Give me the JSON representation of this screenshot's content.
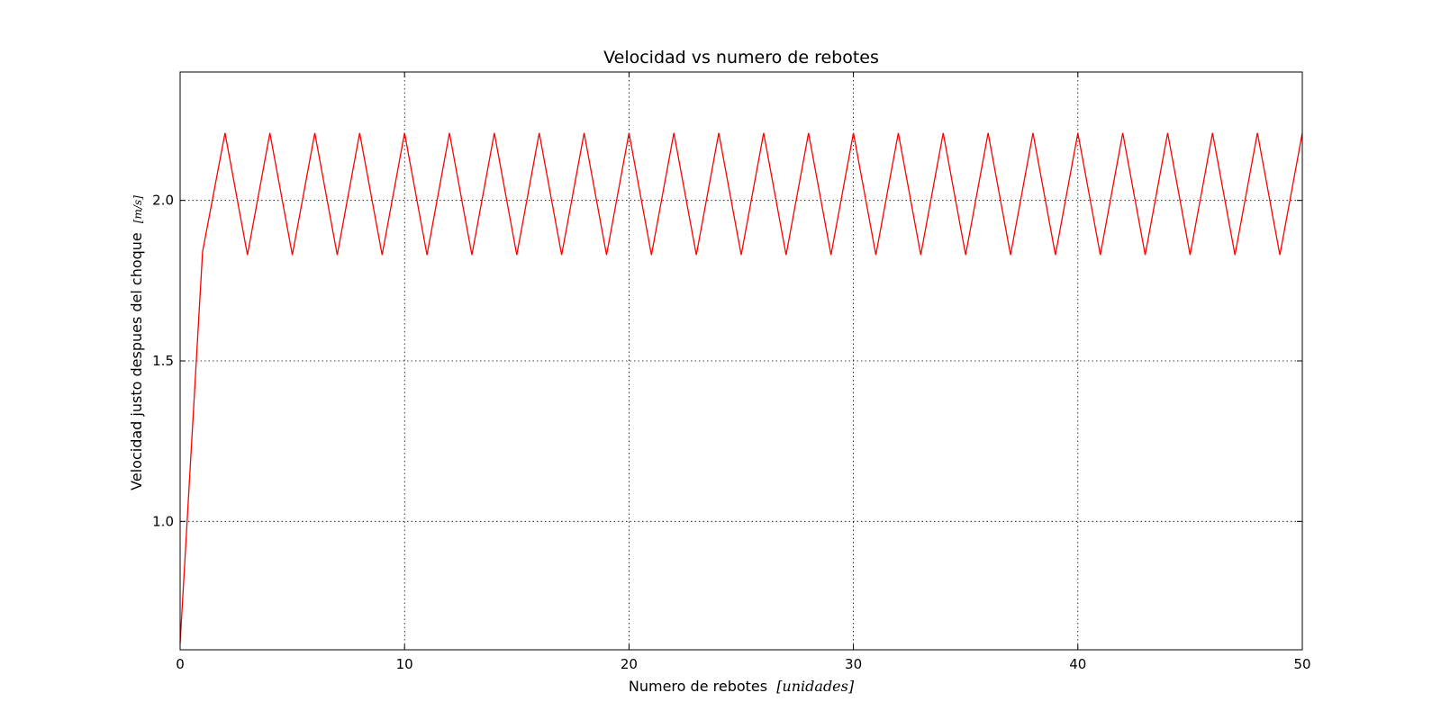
{
  "chart_data": {
    "type": "line",
    "title": "Velocidad vs numero de rebotes",
    "xlabel": "Numero de rebotes",
    "xlabel_unit": "[unidades]",
    "ylabel": "Velocidad justo despues del choque",
    "ylabel_unit": "[m/s]",
    "xlim": [
      0,
      50
    ],
    "ylim": [
      0.6,
      2.4
    ],
    "x_ticks": [
      0,
      10,
      20,
      30,
      40,
      50
    ],
    "y_ticks": [
      1.0,
      1.5,
      2.0
    ],
    "x_tick_labels": [
      "0",
      "10",
      "20",
      "30",
      "40",
      "50"
    ],
    "y_tick_labels": [
      "1.0",
      "1.5",
      "2.0"
    ],
    "grid": true,
    "series": [
      {
        "color": "#ff0000",
        "x": [
          0,
          1,
          2,
          3,
          4,
          5,
          6,
          7,
          8,
          9,
          10,
          11,
          12,
          13,
          14,
          15,
          16,
          17,
          18,
          19,
          20,
          21,
          22,
          23,
          24,
          25,
          26,
          27,
          28,
          29,
          30,
          31,
          32,
          33,
          34,
          35,
          36,
          37,
          38,
          39,
          40,
          41,
          42,
          43,
          44,
          45,
          46,
          47,
          48,
          49,
          50
        ],
        "y": [
          0.62,
          1.84,
          2.21,
          1.83,
          2.21,
          1.83,
          2.21,
          1.83,
          2.21,
          1.83,
          2.21,
          1.83,
          2.21,
          1.83,
          2.21,
          1.83,
          2.21,
          1.83,
          2.21,
          1.83,
          2.21,
          1.83,
          2.21,
          1.83,
          2.21,
          1.83,
          2.21,
          1.83,
          2.21,
          1.83,
          2.21,
          1.83,
          2.21,
          1.83,
          2.21,
          1.83,
          2.21,
          1.83,
          2.21,
          1.83,
          2.21,
          1.83,
          2.21,
          1.83,
          2.21,
          1.83,
          2.21,
          1.83,
          2.21,
          1.83,
          2.21
        ]
      }
    ]
  }
}
